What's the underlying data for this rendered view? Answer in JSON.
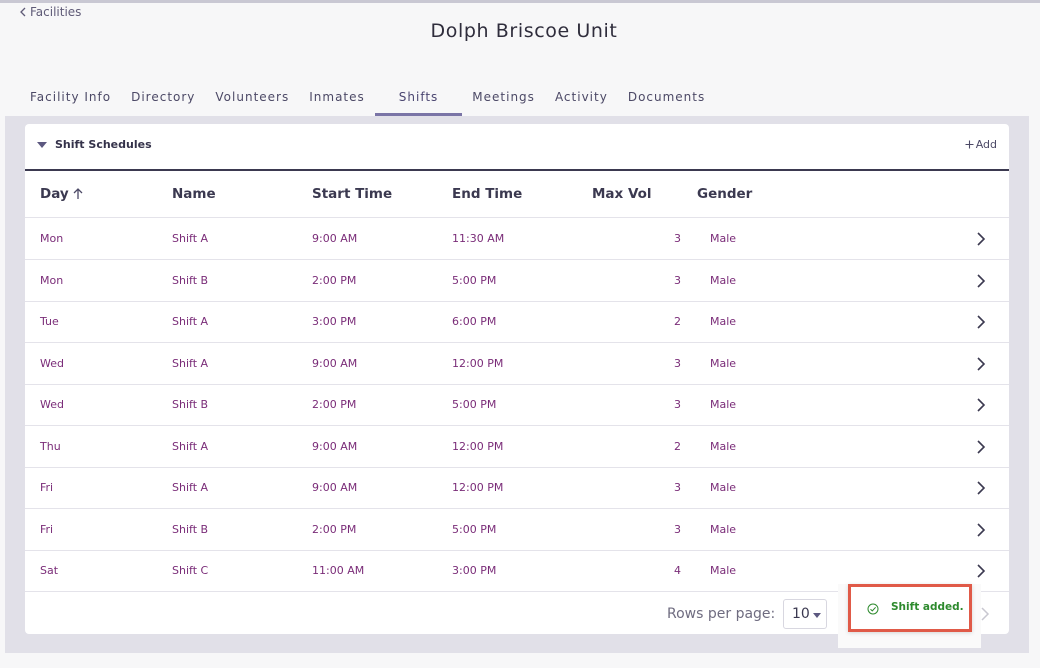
{
  "breadcrumb": {
    "back_label": "Facilities"
  },
  "page": {
    "title": "Dolph Briscoe Unit"
  },
  "tabs": [
    {
      "label": "Facility Info"
    },
    {
      "label": "Directory"
    },
    {
      "label": "Volunteers"
    },
    {
      "label": "Inmates"
    },
    {
      "label": "Shifts"
    },
    {
      "label": "Meetings"
    },
    {
      "label": "Activity"
    },
    {
      "label": "Documents"
    }
  ],
  "active_tab": "Shifts",
  "section": {
    "title": "Shift Schedules",
    "add_label": "Add"
  },
  "table": {
    "columns": [
      "Day",
      "Name",
      "Start Time",
      "End Time",
      "Max Vol",
      "Gender"
    ],
    "sort_column": "Day",
    "sort_direction": "ascending",
    "rows": [
      {
        "day": "Mon",
        "name": "Shift A",
        "start": "9:00 AM",
        "end": "11:30 AM",
        "max": "3",
        "gender": "Male"
      },
      {
        "day": "Mon",
        "name": "Shift B",
        "start": "2:00 PM",
        "end": "5:00 PM",
        "max": "3",
        "gender": "Male"
      },
      {
        "day": "Tue",
        "name": "Shift A",
        "start": "3:00 PM",
        "end": "6:00 PM",
        "max": "2",
        "gender": "Male"
      },
      {
        "day": "Wed",
        "name": "Shift A",
        "start": "9:00 AM",
        "end": "12:00 PM",
        "max": "3",
        "gender": "Male"
      },
      {
        "day": "Wed",
        "name": "Shift B",
        "start": "2:00 PM",
        "end": "5:00 PM",
        "max": "3",
        "gender": "Male"
      },
      {
        "day": "Thu",
        "name": "Shift A",
        "start": "9:00 AM",
        "end": "12:00 PM",
        "max": "2",
        "gender": "Male"
      },
      {
        "day": "Fri",
        "name": "Shift A",
        "start": "9:00 AM",
        "end": "12:00 PM",
        "max": "3",
        "gender": "Male"
      },
      {
        "day": "Fri",
        "name": "Shift B",
        "start": "2:00 PM",
        "end": "5:00 PM",
        "max": "3",
        "gender": "Male"
      },
      {
        "day": "Sat",
        "name": "Shift C",
        "start": "11:00 AM",
        "end": "3:00 PM",
        "max": "4",
        "gender": "Male"
      }
    ]
  },
  "pagination": {
    "rows_per_page_label": "Rows per page:",
    "rows_per_page_value": "10"
  },
  "toast": {
    "message": "Shift added."
  },
  "colors": {
    "accent": "#7a74a6",
    "cell_text": "#7a2c78",
    "toast_border": "#e05a48",
    "toast_text": "#2d8a2d"
  }
}
